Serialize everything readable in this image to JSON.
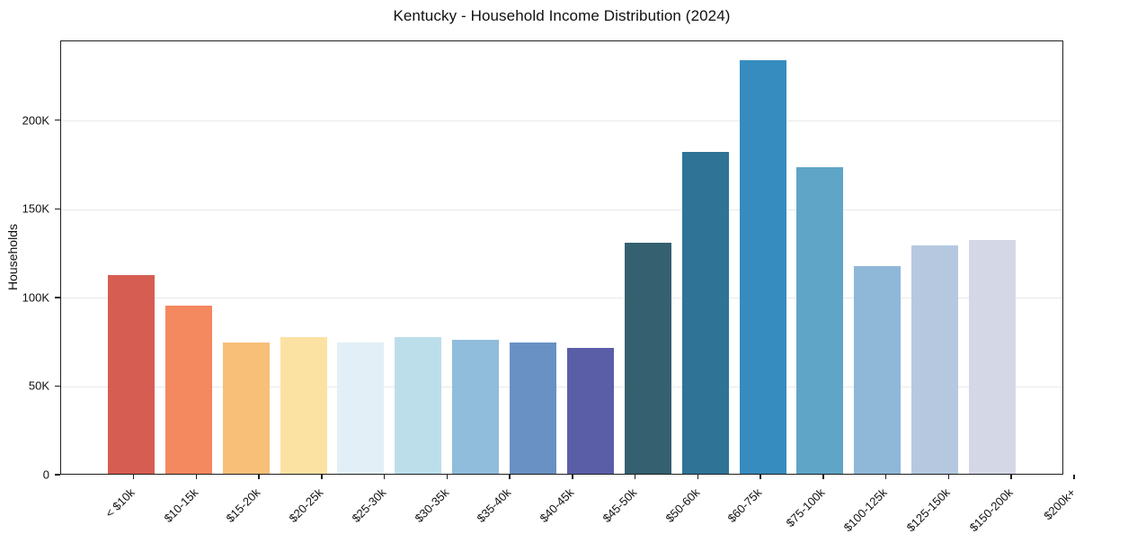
{
  "chart_data": {
    "type": "bar",
    "title": "Kentucky - Household Income Distribution (2024)",
    "xlabel": "",
    "ylabel": "Households",
    "ylim": [
      0,
      245000
    ],
    "grid": "horizontal",
    "legend": "none",
    "categories": [
      "< $10k",
      "$10-15k",
      "$15-20k",
      "$20-25k",
      "$25-30k",
      "$30-35k",
      "$35-40k",
      "$40-45k",
      "$45-50k",
      "$50-60k",
      "$60-75k",
      "$75-100k",
      "$100-125k",
      "$125-150k",
      "$150-200k",
      "$200k+"
    ],
    "values": [
      112000,
      95000,
      74000,
      77200,
      73900,
      76900,
      75800,
      74200,
      70800,
      130200,
      181500,
      233200,
      172800,
      117000,
      128600,
      132000
    ],
    "colors": [
      "#d65d52",
      "#f4885f",
      "#f8bf78",
      "#fce2a2",
      "#e2eff6",
      "#bcdeeb",
      "#90bddc",
      "#6991c4",
      "#5a5ea7",
      "#356070",
      "#2f7396",
      "#368cbf",
      "#5ea5c8",
      "#8fb7d8",
      "#b5c8e0",
      "#d4d7e6"
    ],
    "yticks": [
      {
        "value": 0,
        "label": "0"
      },
      {
        "value": 50000,
        "label": "50K"
      },
      {
        "value": 100000,
        "label": "100K"
      },
      {
        "value": 150000,
        "label": "150K"
      },
      {
        "value": 200000,
        "label": "200K"
      }
    ]
  }
}
